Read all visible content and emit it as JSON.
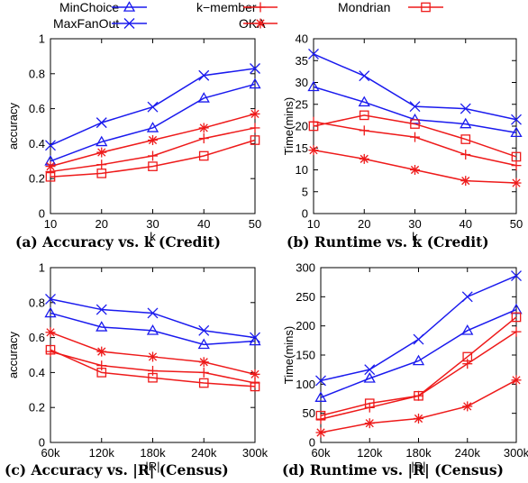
{
  "legend": [
    {
      "name": "MinChoice",
      "color": "#1a1aee",
      "marker": "triangle"
    },
    {
      "name": "MaxFanOut",
      "color": "#1a1aee",
      "marker": "x"
    },
    {
      "name": "k−member",
      "color": "#ee1a1a",
      "marker": "plus"
    },
    {
      "name": "OKA",
      "color": "#ee1a1a",
      "marker": "star"
    },
    {
      "name": "Mondrian",
      "color": "#ee1a1a",
      "marker": "square"
    }
  ],
  "chart_data": [
    {
      "type": "line",
      "caption": "(a) Accuracy vs. k (Credit)",
      "xlabel": "k",
      "ylabel": "accuracy",
      "x": [
        10,
        20,
        30,
        40,
        50
      ],
      "xticklabels": [
        "10",
        "20",
        "30",
        "40",
        "50"
      ],
      "ylim": [
        0,
        1
      ],
      "yticks": [
        0,
        0.2,
        0.4,
        0.6,
        0.8,
        1
      ],
      "yticklabels": [
        "0",
        "0.2",
        "0.4",
        "0.6",
        "0.8",
        "1"
      ],
      "series": [
        {
          "name": "MinChoice",
          "values": [
            0.3,
            0.41,
            0.49,
            0.66,
            0.74
          ]
        },
        {
          "name": "MaxFanOut",
          "values": [
            0.39,
            0.52,
            0.61,
            0.79,
            0.83
          ]
        },
        {
          "name": "k−member",
          "values": [
            0.24,
            0.28,
            0.33,
            0.43,
            0.49
          ]
        },
        {
          "name": "OKA",
          "values": [
            0.27,
            0.35,
            0.42,
            0.49,
            0.57
          ]
        },
        {
          "name": "Mondrian",
          "values": [
            0.21,
            0.23,
            0.27,
            0.33,
            0.42
          ]
        }
      ]
    },
    {
      "type": "line",
      "caption": "(b) Runtime vs. k (Credit)",
      "xlabel": "k",
      "ylabel": "Time(mins)",
      "x": [
        10,
        20,
        30,
        40,
        50
      ],
      "xticklabels": [
        "10",
        "20",
        "30",
        "40",
        "50"
      ],
      "ylim": [
        0,
        40
      ],
      "yticks": [
        0,
        5,
        10,
        15,
        20,
        25,
        30,
        35,
        40
      ],
      "yticklabels": [
        "0",
        "5",
        "10",
        "15",
        "20",
        "25",
        "30",
        "35",
        "40"
      ],
      "series": [
        {
          "name": "MinChoice",
          "values": [
            29,
            25.5,
            21.5,
            20.5,
            18.5
          ]
        },
        {
          "name": "MaxFanOut",
          "values": [
            36.5,
            31.5,
            24.5,
            24,
            21.5
          ]
        },
        {
          "name": "k−member",
          "values": [
            21,
            19,
            17.5,
            13.5,
            11
          ]
        },
        {
          "name": "OKA",
          "values": [
            14.5,
            12.5,
            10,
            7.5,
            7
          ]
        },
        {
          "name": "Mondrian",
          "values": [
            20,
            22.5,
            20.5,
            17,
            13
          ]
        }
      ]
    },
    {
      "type": "line",
      "caption": "(c) Accuracy vs. |R| (Census)",
      "xlabel": "|R|",
      "ylabel": "accuracy",
      "x": [
        60,
        120,
        180,
        240,
        300
      ],
      "xticklabels": [
        "60k",
        "120k",
        "180k",
        "240k",
        "300k"
      ],
      "ylim": [
        0,
        1
      ],
      "yticks": [
        0,
        0.2,
        0.4,
        0.6,
        0.8,
        1
      ],
      "yticklabels": [
        "0",
        "0.2",
        "0.4",
        "0.6",
        "0.8",
        "1"
      ],
      "series": [
        {
          "name": "MinChoice",
          "values": [
            0.74,
            0.66,
            0.64,
            0.56,
            0.58
          ]
        },
        {
          "name": "MaxFanOut",
          "values": [
            0.82,
            0.76,
            0.74,
            0.64,
            0.6
          ]
        },
        {
          "name": "k−member",
          "values": [
            0.52,
            0.44,
            0.41,
            0.4,
            0.34
          ]
        },
        {
          "name": "OKA",
          "values": [
            0.63,
            0.52,
            0.49,
            0.46,
            0.39
          ]
        },
        {
          "name": "Mondrian",
          "values": [
            0.53,
            0.4,
            0.37,
            0.34,
            0.32
          ]
        }
      ]
    },
    {
      "type": "line",
      "caption": "(d) Runtime vs. |R| (Census)",
      "xlabel": "|R|",
      "ylabel": "Time(mins)",
      "x": [
        60,
        120,
        180,
        240,
        300
      ],
      "xticklabels": [
        "60k",
        "120k",
        "180k",
        "240k",
        "300k"
      ],
      "ylim": [
        0,
        300
      ],
      "yticks": [
        0,
        50,
        100,
        150,
        200,
        250,
        300
      ],
      "yticklabels": [
        "0",
        "50",
        "100",
        "150",
        "200",
        "250",
        "300"
      ],
      "series": [
        {
          "name": "MinChoice",
          "values": [
            77,
            110,
            140,
            192,
            228
          ]
        },
        {
          "name": "MaxFanOut",
          "values": [
            106,
            125,
            177,
            250,
            286
          ]
        },
        {
          "name": "k−member",
          "values": [
            40,
            60,
            80,
            135,
            190
          ]
        },
        {
          "name": "OKA",
          "values": [
            17,
            33,
            41,
            62,
            107
          ]
        },
        {
          "name": "Mondrian",
          "values": [
            46,
            67,
            80,
            147,
            215
          ]
        }
      ]
    }
  ]
}
